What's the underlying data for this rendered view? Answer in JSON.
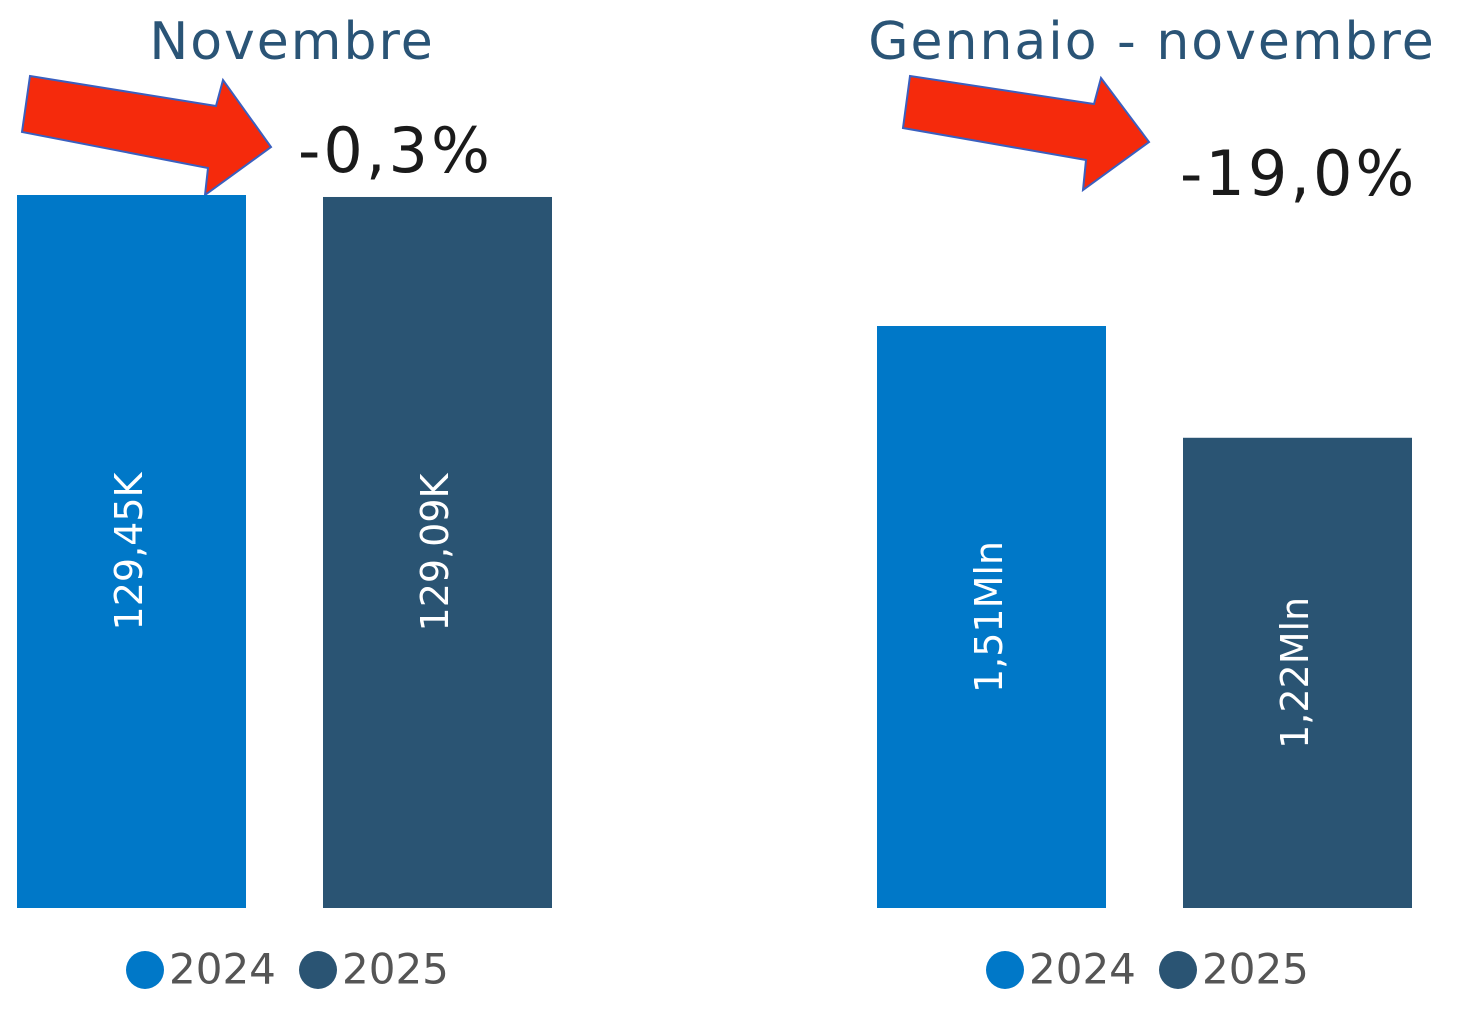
{
  "chart_data": [
    {
      "type": "bar",
      "title": "Novembre",
      "annotation": "-0,3%",
      "series": [
        {
          "name": "2024",
          "color": "#0078c8",
          "values": [
            129450
          ],
          "value_labels": [
            "129,45K"
          ]
        },
        {
          "name": "2025",
          "color": "#2a5473",
          "values": [
            129090
          ],
          "value_labels": [
            "129,09K"
          ]
        }
      ]
    },
    {
      "type": "bar",
      "title": "Gennaio - novembre",
      "annotation": "-19,0%",
      "series": [
        {
          "name": "2024",
          "color": "#0078c8",
          "values": [
            1510000
          ],
          "value_labels": [
            "1,51Mln"
          ]
        },
        {
          "name": "2025",
          "color": "#2a5473",
          "values": [
            1220000
          ],
          "value_labels": [
            "1,22Mln"
          ]
        }
      ]
    }
  ]
}
